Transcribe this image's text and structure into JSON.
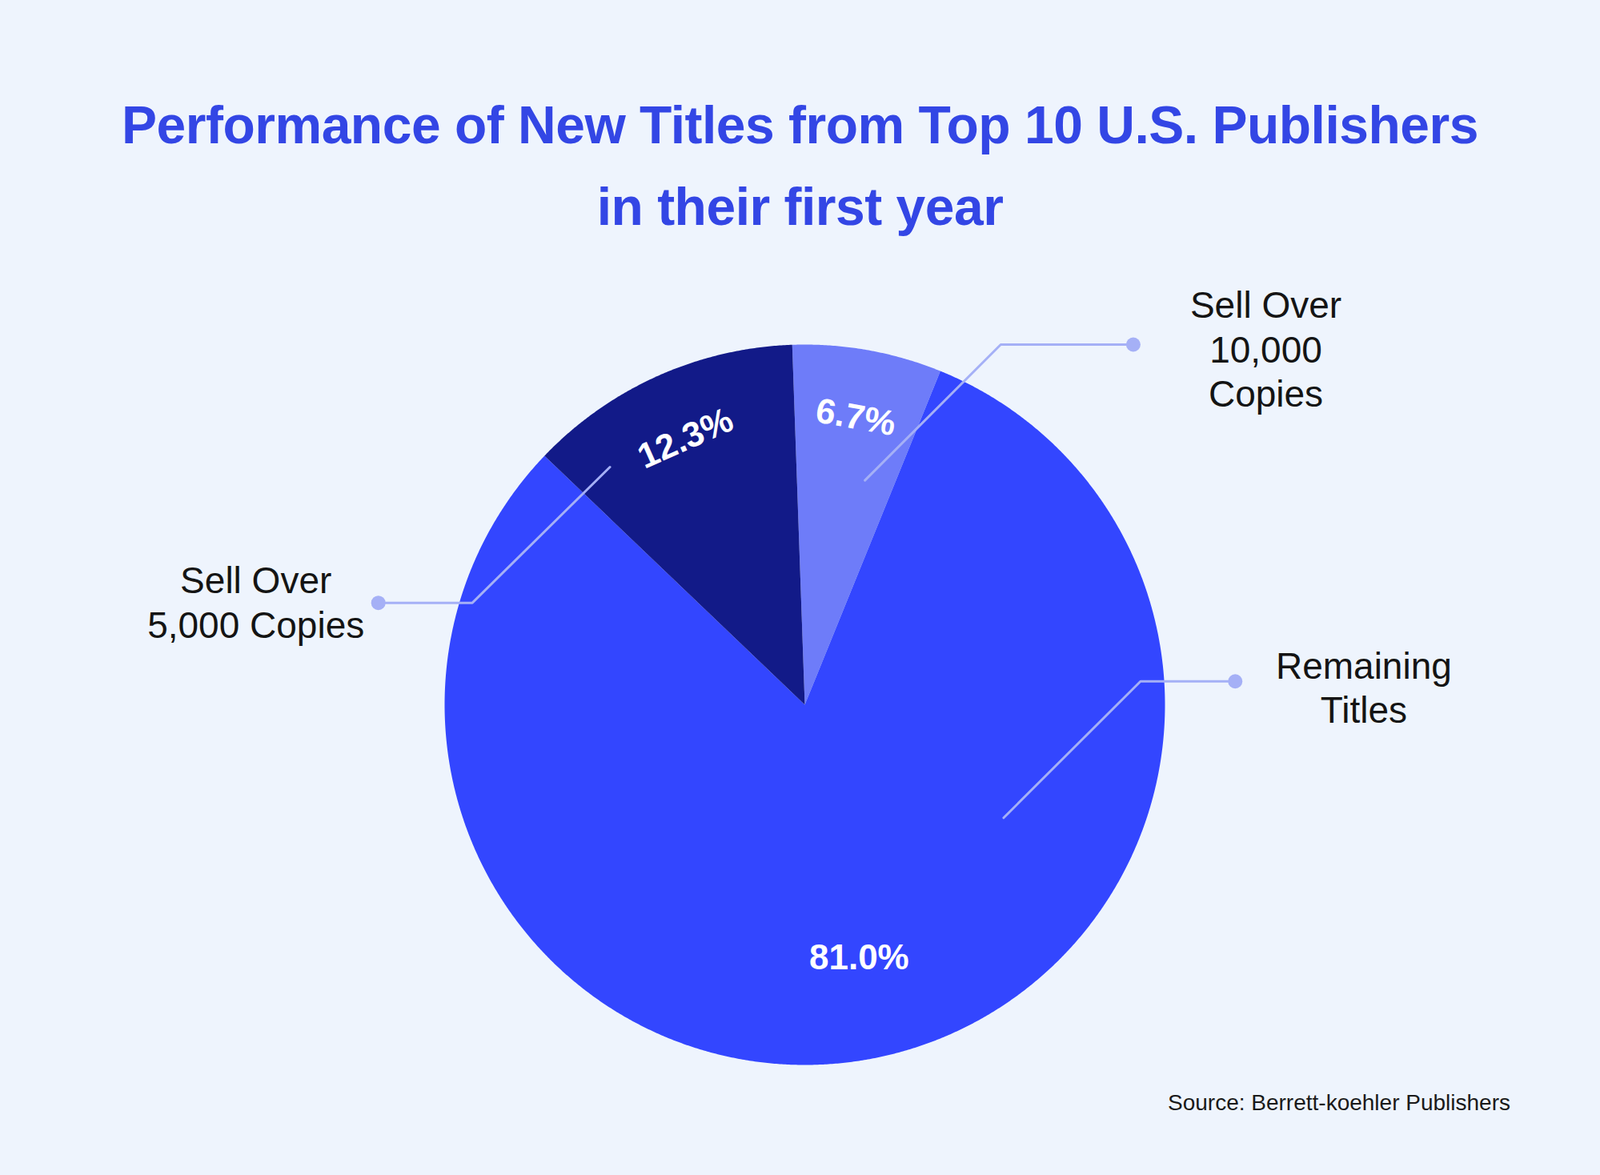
{
  "chart_data": {
    "type": "pie",
    "title": "Performance of New Titles from Top 10 U.S. Publishers in their first year",
    "categories": [
      "Sell Over 10,000 Copies",
      "Remaining Titles",
      "Sell Over 5,000 Copies"
    ],
    "values": [
      6.7,
      81.0,
      12.3
    ],
    "value_labels": [
      "6.7%",
      "81.0%",
      "12.3%"
    ],
    "colors": [
      "#6e7cf9",
      "#3346ff",
      "#121a88"
    ],
    "data_labels": true,
    "source": "Source: Berrett-koehler Publishers"
  }
}
